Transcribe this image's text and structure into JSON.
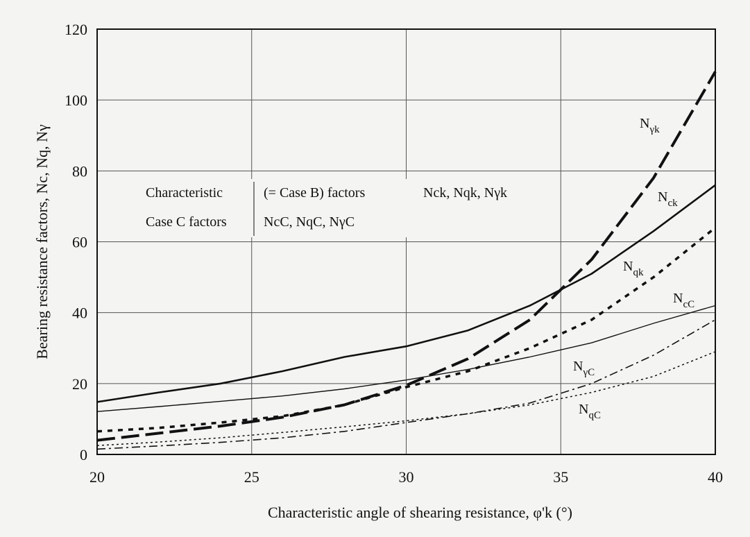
{
  "chart_data": {
    "type": "line",
    "xlabel": "Characteristic angle of shearing resistance, φ'k (°)",
    "ylabel": "Bearing resistance factors, Nc, Nq, Nγ",
    "xlim": [
      20,
      40
    ],
    "ylim": [
      0,
      120
    ],
    "x_ticks": [
      20,
      25,
      30,
      35,
      40
    ],
    "y_ticks": [
      0,
      20,
      40,
      60,
      80,
      100,
      120
    ],
    "grid": true,
    "legend_lines": [
      {
        "label": "Characteristic",
        "note": "(= Case B) factors",
        "symbols": "Nck, Nqk, Nγk"
      },
      {
        "label": "Case C factors",
        "symbols": "NcC, NqC, NγC"
      }
    ],
    "x": [
      20,
      22,
      24,
      26,
      28,
      30,
      32,
      34,
      36,
      38,
      40
    ],
    "series": [
      {
        "name": "Nγk",
        "style": "long-dash",
        "values": [
          4,
          6,
          8,
          10.5,
          14,
          19.5,
          27,
          38,
          55,
          78,
          108
        ]
      },
      {
        "name": "Nck",
        "style": "solid-thick",
        "values": [
          14.8,
          17.5,
          20,
          23.5,
          27.5,
          30.5,
          35,
          42,
          51,
          63,
          76
        ]
      },
      {
        "name": "Nqk",
        "style": "dotted-thick",
        "values": [
          6.5,
          7.5,
          9,
          10.8,
          14,
          19,
          23.5,
          30,
          38,
          50,
          64
        ]
      },
      {
        "name": "NcC",
        "style": "solid-thin",
        "values": [
          12.1,
          13.5,
          15,
          16.5,
          18.5,
          21,
          24,
          27.5,
          31.5,
          37,
          42
        ]
      },
      {
        "name": "NγC",
        "style": "dash-dot",
        "values": [
          1.5,
          2.4,
          3.4,
          4.7,
          6.5,
          9,
          11.5,
          14.5,
          20,
          28,
          38
        ]
      },
      {
        "name": "NqC",
        "style": "fine-dotted",
        "values": [
          2.5,
          3.5,
          4.7,
          6.2,
          7.8,
          9.5,
          11.5,
          14,
          17.5,
          22,
          29
        ]
      }
    ],
    "curve_labels": [
      {
        "base": "N",
        "sub": "γk"
      },
      {
        "base": "N",
        "sub": "ck"
      },
      {
        "base": "N",
        "sub": "qk"
      },
      {
        "base": "N",
        "sub": "cC"
      },
      {
        "base": "N",
        "sub": "γC"
      },
      {
        "base": "N",
        "sub": "qC"
      }
    ]
  }
}
